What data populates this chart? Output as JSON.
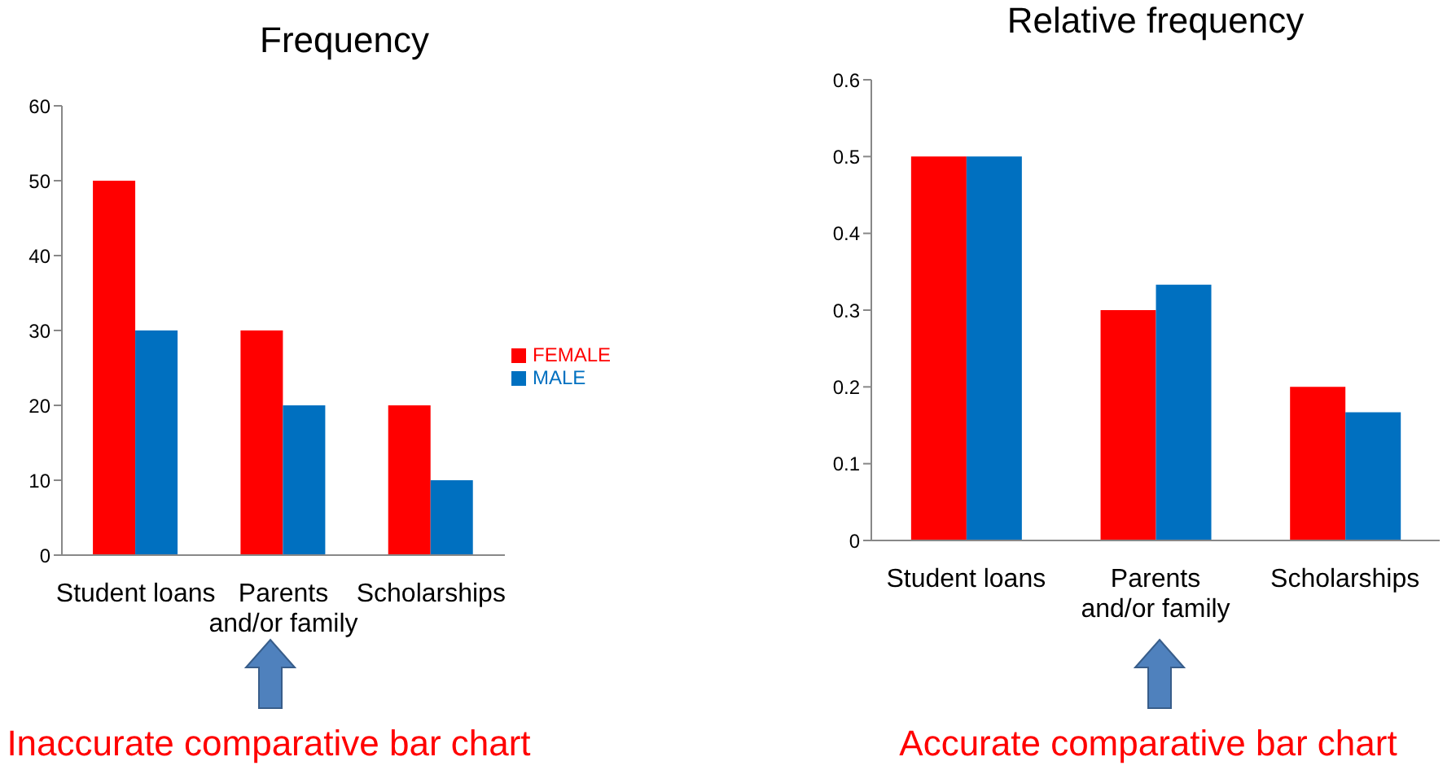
{
  "chart_data": [
    {
      "type": "bar",
      "title": "Frequency",
      "categories": [
        "Student loans",
        "Parents and/or family",
        "Scholarships"
      ],
      "series": [
        {
          "name": "FEMALE",
          "color": "#ff0000",
          "values": [
            50,
            30,
            20
          ]
        },
        {
          "name": "MALE",
          "color": "#0070c0",
          "values": [
            30,
            20,
            10
          ]
        }
      ],
      "ylim": [
        0,
        60
      ],
      "yticks": [
        0,
        10,
        20,
        30,
        40,
        50,
        60
      ],
      "grid": false,
      "legend": "right",
      "annotations": [
        "Inaccurate comparative bar chart"
      ]
    },
    {
      "type": "bar",
      "title": "Relative frequency",
      "categories": [
        "Student loans",
        "Parents and/or family",
        "Scholarships"
      ],
      "series": [
        {
          "color": "#ff0000",
          "values": [
            0.5,
            0.3,
            0.2
          ]
        },
        {
          "color": "#0070c0",
          "values": [
            0.5,
            0.333,
            0.167
          ]
        }
      ],
      "ylim": [
        0,
        0.6
      ],
      "yticks": [
        0,
        0.1,
        0.2,
        0.3,
        0.4,
        0.5,
        0.6
      ],
      "grid": false,
      "annotations": [
        "Accurate comparative bar chart"
      ]
    }
  ]
}
